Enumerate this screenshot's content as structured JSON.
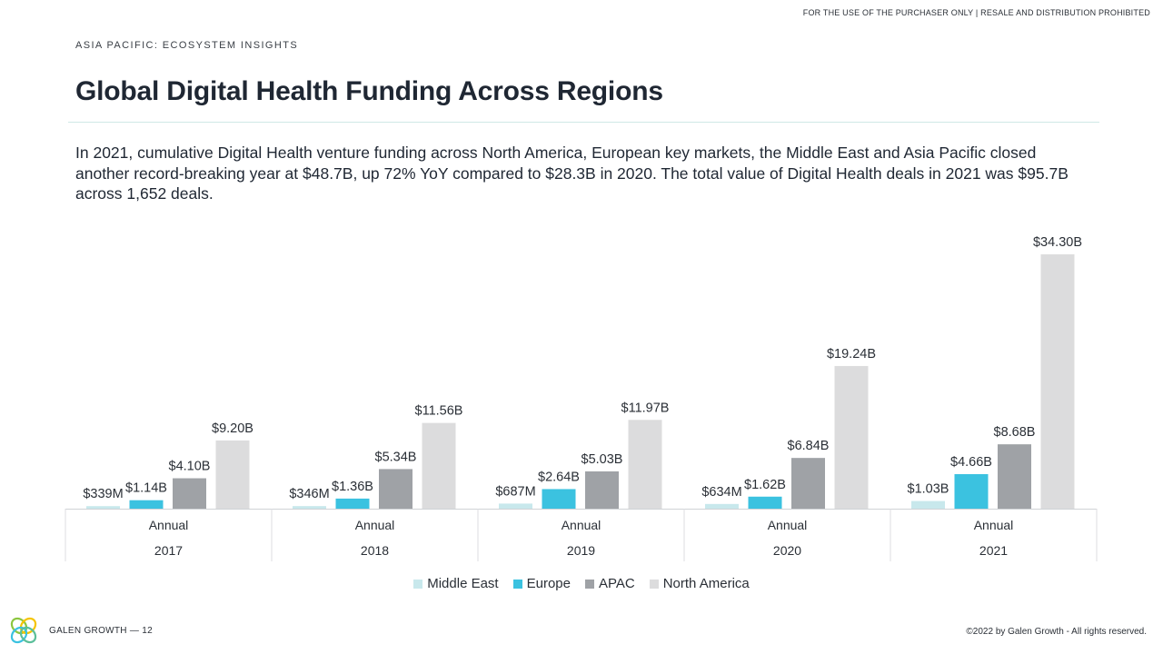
{
  "header": {
    "notice": "FOR THE USE OF THE PURCHASER ONLY | RESALE AND DISTRIBUTION PROHIBITED",
    "section": "ASIA PACIFIC:  ECOSYSTEM INSIGHTS",
    "title": "Global Digital Health Funding Across Regions"
  },
  "intro": "In 2021, cumulative Digital Health venture funding across North America, European key markets, the Middle East and Asia Pacific closed another record-breaking year at $48.7B, up 72% YoY compared to $28.3B in 2020. The total value of Digital Health deals in 2021 was $95.7B across 1,652 deals.",
  "chart_data": {
    "type": "bar",
    "title": "",
    "xlabel": "",
    "ylabel": "",
    "ylim": [
      0,
      34.3
    ],
    "grid": false,
    "legend_position": "bottom",
    "unit": "USD billions",
    "period_label": "Annual",
    "categories": [
      "2017",
      "2018",
      "2019",
      "2020",
      "2021"
    ],
    "series": [
      {
        "name": "Middle East",
        "color": "#c8e8ec",
        "values": [
          0.339,
          0.346,
          0.687,
          0.634,
          1.03
        ],
        "labels": [
          "$339M",
          "$346M",
          "$687M",
          "$634M",
          "$1.03B"
        ]
      },
      {
        "name": "Europe",
        "color": "#3bc2e0",
        "values": [
          1.14,
          1.36,
          2.64,
          1.62,
          4.66
        ],
        "labels": [
          "$1.14B",
          "$1.36B",
          "$2.64B",
          "$1.62B",
          "$4.66B"
        ]
      },
      {
        "name": "APAC",
        "color": "#9fa2a6",
        "values": [
          4.1,
          5.34,
          5.03,
          6.84,
          8.68
        ],
        "labels": [
          "$4.10B",
          "$5.34B",
          "$5.03B",
          "$6.84B",
          "$8.68B"
        ]
      },
      {
        "name": "North America",
        "color": "#dcdcdd",
        "values": [
          9.2,
          11.56,
          11.97,
          19.24,
          34.3
        ],
        "labels": [
          "$9.20B",
          "$11.56B",
          "$11.97B",
          "$19.24B",
          "$34.30B"
        ]
      }
    ]
  },
  "footer": {
    "brand": "GALEN GROWTH  —  12",
    "copyright": "©2022 by Galen Growth  - All rights reserved."
  }
}
